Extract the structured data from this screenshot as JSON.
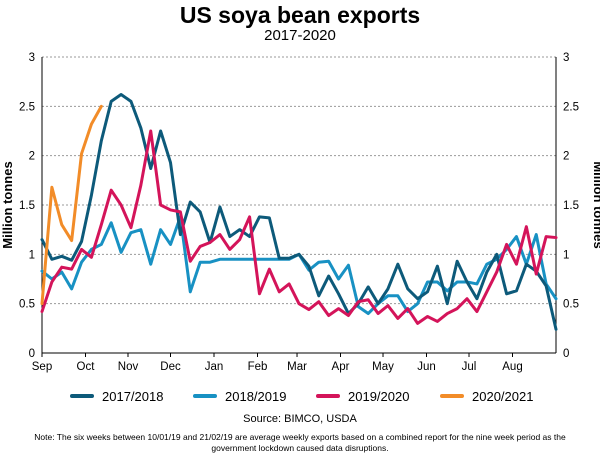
{
  "header": {
    "title": "US soya bean exports",
    "subtitle": "2017-2020"
  },
  "footer": {
    "source": "Source: BIMCO, USDA",
    "note": "Note: The six weeks between 10/01/19 and 21/02/19 are average weekly exports based on a combined report for the nine week period as the government lockdown caused data disruptions."
  },
  "chart_data": {
    "type": "line",
    "ylabel": "Million tonnes",
    "ylabel_right": "Million tonnes",
    "ylim": [
      0,
      3
    ],
    "yticks": [
      "0",
      "0.5",
      "1",
      "1.5",
      "2",
      "2.5",
      "3"
    ],
    "xlim": [
      0,
      52
    ],
    "xticks": [
      {
        "label": "Sep",
        "week": 0
      },
      {
        "label": "Oct",
        "week": 4.4
      },
      {
        "label": "Nov",
        "week": 8.7
      },
      {
        "label": "Dec",
        "week": 13
      },
      {
        "label": "Jan",
        "week": 17.4
      },
      {
        "label": "Feb",
        "week": 21.8
      },
      {
        "label": "Mar",
        "week": 25.8
      },
      {
        "label": "Apr",
        "week": 30.2
      },
      {
        "label": "May",
        "week": 34.5
      },
      {
        "label": "Jun",
        "week": 38.9
      },
      {
        "label": "Jul",
        "week": 43.2
      },
      {
        "label": "Aug",
        "week": 47.6
      }
    ],
    "grid": "dotted horizontal",
    "legend_position": "bottom",
    "series": [
      {
        "name": "2017/2018",
        "color": "#0d5a7a",
        "values": [
          1.15,
          0.95,
          0.98,
          0.94,
          1.13,
          1.6,
          2.15,
          2.55,
          2.62,
          2.55,
          2.28,
          1.87,
          2.25,
          1.93,
          1.2,
          1.53,
          1.43,
          1.12,
          1.48,
          1.18,
          1.25,
          1.18,
          1.38,
          1.37,
          0.96,
          0.96,
          1.0,
          0.88,
          0.58,
          0.78,
          0.6,
          0.4,
          0.5,
          0.67,
          0.5,
          0.65,
          0.9,
          0.65,
          0.55,
          0.62,
          0.88,
          0.5,
          0.93,
          0.72,
          0.55,
          0.82,
          1.0,
          0.6,
          0.63,
          0.9,
          0.83,
          0.68,
          0.24
        ]
      },
      {
        "name": "2018/2019",
        "color": "#1891c3",
        "values": [
          0.83,
          0.75,
          0.82,
          0.65,
          0.92,
          1.05,
          1.1,
          1.32,
          1.02,
          1.22,
          1.25,
          0.9,
          1.25,
          1.1,
          1.38,
          0.62,
          0.92,
          0.92,
          0.95,
          0.95,
          0.95,
          0.95,
          0.95,
          0.95,
          0.95,
          0.95,
          1.0,
          0.84,
          0.92,
          0.93,
          0.75,
          0.89,
          0.47,
          0.4,
          0.5,
          0.58,
          0.58,
          0.42,
          0.5,
          0.72,
          0.72,
          0.63,
          0.72,
          0.72,
          0.7,
          0.9,
          0.95,
          1.05,
          1.18,
          0.9,
          1.2,
          0.7,
          0.55
        ]
      },
      {
        "name": "2019/2020",
        "color": "#d4145a",
        "values": [
          0.42,
          0.72,
          0.87,
          0.85,
          1.05,
          0.97,
          1.3,
          1.65,
          1.5,
          1.27,
          1.7,
          2.25,
          1.5,
          1.45,
          1.43,
          0.93,
          1.08,
          1.12,
          1.2,
          1.05,
          1.15,
          1.38,
          0.6,
          0.85,
          0.62,
          0.7,
          0.5,
          0.44,
          0.52,
          0.38,
          0.45,
          0.38,
          0.52,
          0.54,
          0.4,
          0.48,
          0.35,
          0.45,
          0.3,
          0.37,
          0.32,
          0.4,
          0.45,
          0.55,
          0.42,
          0.62,
          0.82,
          1.1,
          0.9,
          1.28,
          0.8,
          1.18,
          1.17
        ]
      },
      {
        "name": "2020/2021",
        "color": "#f28c28",
        "values": [
          0.5,
          1.68,
          1.3,
          1.14,
          2.02,
          2.32,
          2.5
        ]
      }
    ]
  }
}
